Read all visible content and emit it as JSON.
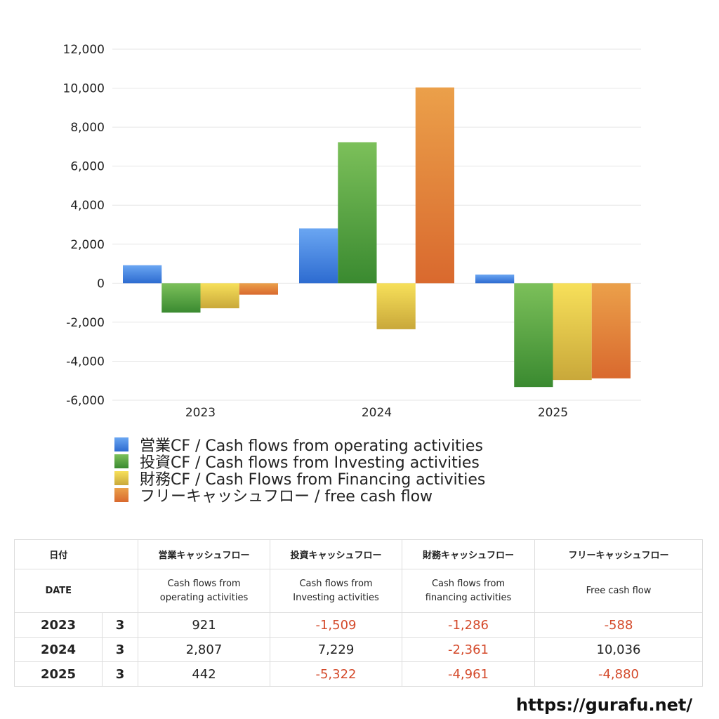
{
  "chart_data": {
    "type": "bar",
    "categories": [
      "2023",
      "2024",
      "2025"
    ],
    "series": [
      {
        "name": "営業CF / Cash flows from operating activities",
        "values": [
          921,
          2807,
          442
        ],
        "color": "#3d7fe0"
      },
      {
        "name": "投資CF / Cash flows from Investing activities",
        "values": [
          -1509,
          7229,
          -5322
        ],
        "color": "#4fa23e"
      },
      {
        "name": "財務CF / Cash Flows from Financing activities",
        "values": [
          -1286,
          -2361,
          -4961
        ],
        "color": "#e7cc3c"
      },
      {
        "name": "フリーキャッシュフロー / free cash flow",
        "values": [
          -588,
          10036,
          -4880
        ],
        "color": "#e5823a"
      }
    ],
    "ylim": [
      -6000,
      12000
    ],
    "yticks": [
      12000,
      10000,
      8000,
      6000,
      4000,
      2000,
      0,
      -2000,
      -4000,
      -6000
    ],
    "ytick_labels": [
      "12,000",
      "10,000",
      "8,000",
      "6,000",
      "4,000",
      "2,000",
      "0",
      "-2,000",
      "-4,000",
      "-6,000"
    ],
    "grid": true,
    "legend_position": "bottom-left"
  },
  "table": {
    "headers_jp": [
      "日付",
      "営業キャッシュフロー",
      "投資キャッシュフロー",
      "財務キャッシュフロー",
      "フリーキャッシュフロー"
    ],
    "headers_en": {
      "date": "DATE",
      "op_1": "Cash flows from",
      "op_2": "operating activities",
      "inv_1": "Cash flows from",
      "inv_2": "Investing activities",
      "fin_1": "Cash flows from",
      "fin_2": "financing activities",
      "free": "Free cash flow"
    },
    "rows": [
      {
        "year": "2023",
        "month": "3",
        "op": "921",
        "inv": "-1,509",
        "fin": "-1,286",
        "free": "-588"
      },
      {
        "year": "2024",
        "month": "3",
        "op": "2,807",
        "inv": "7,229",
        "fin": "-2,361",
        "free": "10,036"
      },
      {
        "year": "2025",
        "month": "3",
        "op": "442",
        "inv": "-5,322",
        "fin": "-4,961",
        "free": "-4,880"
      }
    ]
  },
  "footer": {
    "url": "https://gurafu.net/"
  }
}
